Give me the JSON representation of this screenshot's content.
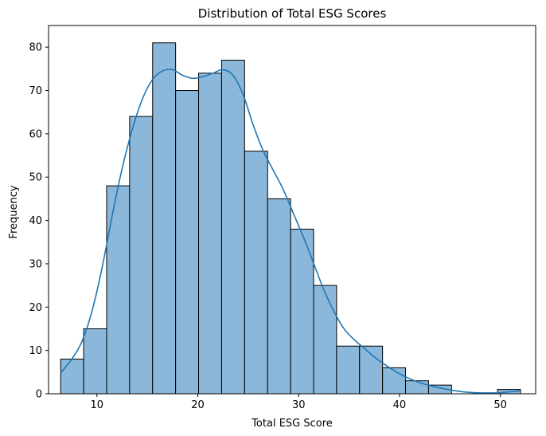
{
  "chart_data": {
    "type": "bar",
    "subtype": "histogram-with-kde",
    "title": "Distribution of Total ESG Scores",
    "xlabel": "Total ESG Score",
    "ylabel": "Frequency",
    "xlim": [
      5.2,
      53.5
    ],
    "ylim": [
      0,
      85
    ],
    "xticks": [
      10,
      20,
      30,
      40,
      50
    ],
    "yticks": [
      0,
      10,
      20,
      30,
      40,
      50,
      60,
      70,
      80
    ],
    "bin_edges": [
      6.4,
      8.68,
      10.96,
      13.24,
      15.52,
      17.8,
      20.08,
      22.36,
      24.64,
      26.92,
      29.2,
      31.48,
      33.76,
      36.04,
      38.32,
      40.6,
      42.88,
      45.16,
      47.44,
      49.72,
      52.0
    ],
    "counts": [
      8,
      15,
      48,
      64,
      81,
      70,
      74,
      77,
      56,
      45,
      38,
      25,
      11,
      11,
      6,
      3,
      2,
      0,
      0,
      1
    ],
    "bar_color": "#8bb8da",
    "edge_color": "#000000",
    "kde": {
      "color": "#1f77b4",
      "x": [
        6.4,
        7.5,
        8.5,
        9.5,
        10.5,
        11.5,
        12.5,
        13.5,
        14.5,
        15.5,
        16.5,
        17.5,
        18.5,
        19.5,
        20.5,
        21.5,
        22.5,
        23.5,
        24.5,
        25.5,
        26.5,
        27.5,
        28.5,
        29.5,
        30.5,
        31.5,
        32.5,
        33.5,
        34.5,
        35.5,
        36.5,
        37.5,
        38.5,
        39.5,
        40.5,
        41.5,
        42.5,
        43.5,
        44.5,
        45.5,
        46.5,
        47.5,
        48.5,
        49.5,
        50.5,
        51.5,
        52.0
      ],
      "y": [
        4.8,
        8,
        12,
        19,
        29,
        41,
        52,
        61,
        68,
        72.5,
        74.5,
        74.8,
        73.5,
        72.8,
        73.2,
        74,
        74.8,
        73.5,
        69,
        62,
        56,
        51.5,
        47,
        41.5,
        36,
        30,
        24,
        19,
        15,
        12.5,
        10.5,
        8.5,
        6.8,
        5.3,
        4,
        3,
        2.2,
        1.6,
        1.1,
        0.7,
        0.4,
        0.25,
        0.2,
        0.2,
        0.35,
        0.55,
        0.7
      ]
    }
  }
}
